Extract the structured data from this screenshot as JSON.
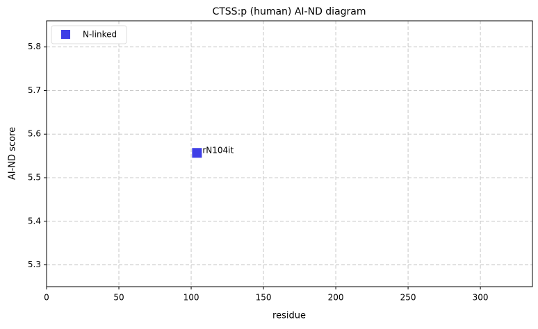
{
  "chart_data": {
    "type": "scatter",
    "title": "CTSS:p (human) AI-ND diagram",
    "x_label": "residue",
    "y_label": "AI-ND score",
    "series": [
      {
        "name": "N-linked",
        "color": "#3f3fe6",
        "x": [
          104
        ],
        "y": [
          5.557
        ]
      }
    ],
    "annotation": "rN104it",
    "xlim": [
      0,
      336
    ],
    "xticks": [
      0,
      50,
      100,
      150,
      200,
      250,
      300
    ],
    "ylim": [
      5.25,
      5.86
    ],
    "yticks": [
      5.3,
      5.4,
      5.5,
      5.6,
      5.7,
      5.8
    ],
    "grid": true,
    "legend": "upper left"
  }
}
